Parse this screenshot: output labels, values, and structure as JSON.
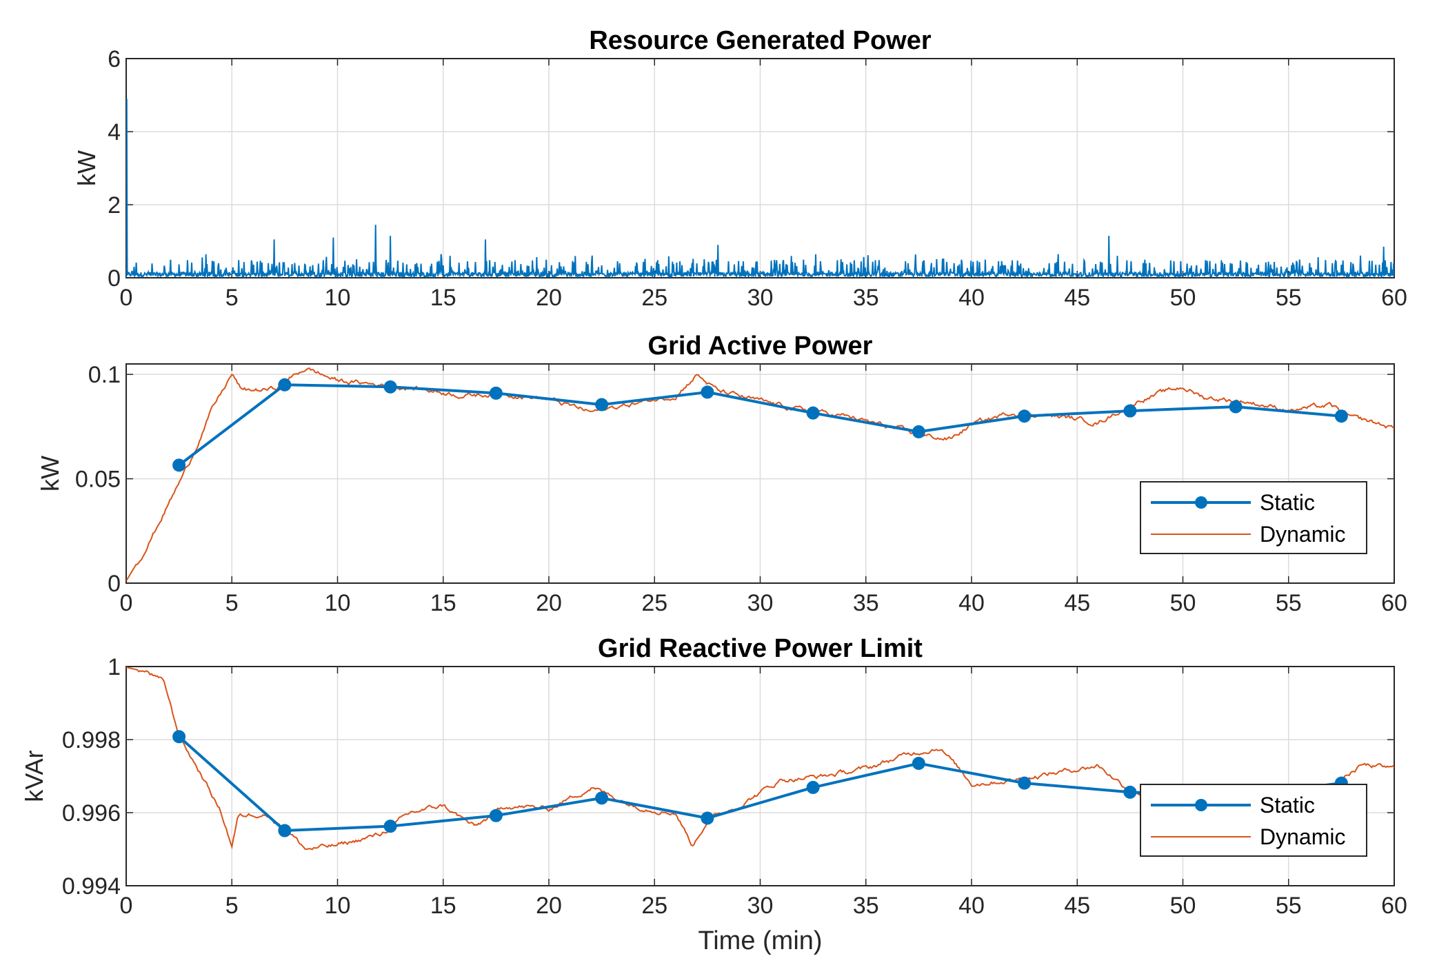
{
  "chart_data": [
    {
      "type": "line",
      "title": "Resource Generated Power",
      "xlabel": "",
      "ylabel": "kW",
      "xlim": [
        0,
        60
      ],
      "ylim": [
        0,
        6
      ],
      "xticks": [
        "0",
        "5",
        "10",
        "15",
        "20",
        "25",
        "30",
        "35",
        "40",
        "45",
        "50",
        "55",
        "60"
      ],
      "yticks": [
        "0",
        "2",
        "4",
        "6"
      ],
      "grid": true,
      "legend": "none",
      "series": [
        {
          "color": "#0072BD",
          "style": "noisy-spiky",
          "baseline": 0.1,
          "typical_peak": 0.5,
          "initial_spike": 4.9,
          "peaks": [
            {
              "x": 7.0,
              "y": 1.05
            },
            {
              "x": 9.8,
              "y": 1.1
            },
            {
              "x": 11.8,
              "y": 1.45
            },
            {
              "x": 12.5,
              "y": 1.15
            },
            {
              "x": 17.0,
              "y": 1.05
            },
            {
              "x": 28.0,
              "y": 0.9
            },
            {
              "x": 46.5,
              "y": 1.15
            },
            {
              "x": 59.5,
              "y": 0.85
            }
          ]
        }
      ]
    },
    {
      "type": "line",
      "title": "Grid Active Power",
      "xlabel": "",
      "ylabel": "kW",
      "xlim": [
        0,
        60
      ],
      "ylim": [
        0,
        0.105
      ],
      "xticks": [
        "0",
        "5",
        "10",
        "15",
        "20",
        "25",
        "30",
        "35",
        "40",
        "45",
        "50",
        "55",
        "60"
      ],
      "yticks": [
        {
          "v": 0,
          "label": "0"
        },
        {
          "v": 0.05,
          "label": "0.05"
        },
        {
          "v": 0.1,
          "label": "0.1"
        }
      ],
      "grid": true,
      "legend": "lower-right",
      "series": [
        {
          "name": "Static",
          "color": "#0072BD",
          "markers": true,
          "x": [
            2.5,
            7.5,
            12.5,
            17.5,
            22.5,
            27.5,
            32.5,
            37.5,
            42.5,
            47.5,
            52.5,
            57.5
          ],
          "y": [
            0.0565,
            0.095,
            0.094,
            0.091,
            0.0855,
            0.0915,
            0.0815,
            0.0725,
            0.08,
            0.0825,
            0.0845,
            0.08
          ]
        },
        {
          "name": "Dynamic",
          "color": "#D95319",
          "markers": false,
          "noise": 0.0016,
          "x": [
            0,
            1,
            2,
            3,
            4,
            5,
            5.5,
            7,
            8.5,
            10,
            12,
            14,
            16,
            18,
            20,
            22,
            24,
            26,
            27,
            28,
            30,
            32,
            34,
            36,
            37.5,
            39,
            40,
            42,
            44,
            46,
            48,
            50,
            51,
            53,
            55,
            57,
            58,
            59,
            60
          ],
          "y": [
            0.001,
            0.018,
            0.038,
            0.058,
            0.082,
            0.1,
            0.092,
            0.093,
            0.103,
            0.097,
            0.095,
            0.093,
            0.09,
            0.091,
            0.088,
            0.082,
            0.086,
            0.09,
            0.1,
            0.092,
            0.087,
            0.083,
            0.08,
            0.075,
            0.071,
            0.069,
            0.076,
            0.082,
            0.08,
            0.077,
            0.088,
            0.094,
            0.089,
            0.087,
            0.083,
            0.085,
            0.079,
            0.077,
            0.074
          ]
        }
      ]
    },
    {
      "type": "line",
      "title": "Grid Reactive Power Limit",
      "xlabel": "Time (min)",
      "ylabel": "kVAr",
      "xlim": [
        0,
        60
      ],
      "ylim": [
        0.994,
        1.0
      ],
      "xticks": [
        "0",
        "5",
        "10",
        "15",
        "20",
        "25",
        "30",
        "35",
        "40",
        "45",
        "50",
        "55",
        "60"
      ],
      "yticks": [
        {
          "v": 0.994,
          "label": "0.994"
        },
        {
          "v": 0.996,
          "label": "0.996"
        },
        {
          "v": 0.998,
          "label": "0.998"
        },
        {
          "v": 1.0,
          "label": "1"
        }
      ],
      "grid": true,
      "legend": "lower-right",
      "series": [
        {
          "name": "Static",
          "color": "#0072BD",
          "markers": true,
          "x": [
            2.5,
            7.5,
            12.5,
            17.5,
            22.5,
            27.5,
            32.5,
            37.5,
            42.5,
            47.5,
            52.5,
            57.5
          ],
          "y": [
            0.99808,
            0.99551,
            0.99563,
            0.99592,
            0.9964,
            0.99585,
            0.99669,
            0.99735,
            0.99681,
            0.99656,
            0.99645,
            0.99681
          ]
        },
        {
          "name": "Dynamic",
          "color": "#D95319",
          "markers": false,
          "noise": 9e-05,
          "x": [
            0,
            1,
            1.8,
            2.5,
            3.5,
            4.5,
            5,
            5.3,
            6.5,
            7.5,
            8.5,
            10,
            12,
            13.5,
            15,
            16.5,
            18,
            20,
            22,
            24,
            26,
            26.8,
            27.5,
            29,
            31,
            33,
            35,
            37,
            38.5,
            40,
            42,
            44,
            46,
            47.5,
            49,
            51,
            53,
            55,
            57,
            58.5,
            60
          ],
          "y": [
            0.99998,
            0.99985,
            0.99955,
            0.9981,
            0.9971,
            0.996,
            0.9951,
            0.9959,
            0.996,
            0.9956,
            0.995,
            0.9951,
            0.9954,
            0.996,
            0.9962,
            0.9956,
            0.9962,
            0.9961,
            0.9967,
            0.9962,
            0.996,
            0.9951,
            0.9958,
            0.9962,
            0.9969,
            0.997,
            0.9972,
            0.9976,
            0.9978,
            0.9968,
            0.9969,
            0.9971,
            0.9973,
            0.9966,
            0.9964,
            0.9963,
            0.9965,
            0.9966,
            0.9967,
            0.9973,
            0.9972
          ]
        }
      ]
    }
  ]
}
